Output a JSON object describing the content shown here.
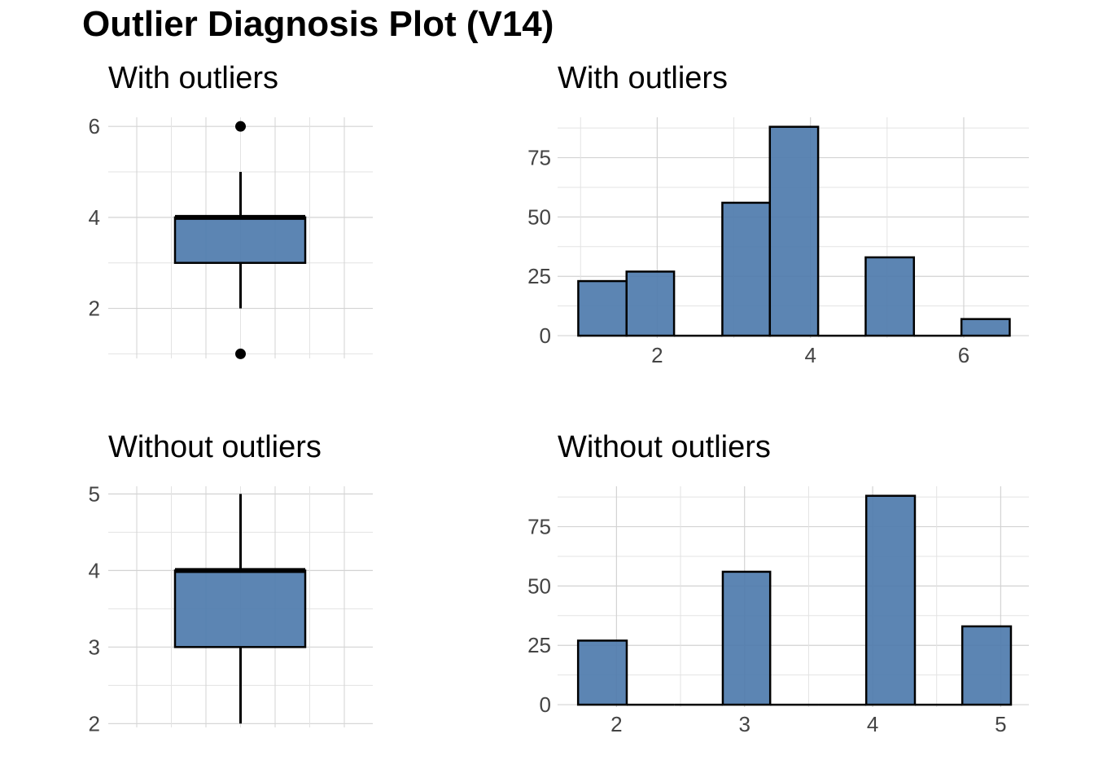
{
  "title": "Outlier Diagnosis Plot (V14)",
  "colors": {
    "fill": "#4E7BAC",
    "outline": "#000000",
    "grid": "#d3d3d3",
    "tick": "#444444"
  },
  "chart_data": [
    {
      "type": "box",
      "title": "With outliers",
      "ylim": [
        0.9,
        6.2
      ],
      "y_ticks": [
        "2",
        "4",
        "6"
      ],
      "stats": {
        "lower_whisker": 2,
        "q1": 3,
        "median": 4,
        "q3": 4,
        "upper_whisker": 5
      },
      "outliers": [
        1,
        6
      ],
      "grid": true
    },
    {
      "type": "bar",
      "title": "With outliers",
      "xlim": [
        0.7,
        6.85
      ],
      "ylim": [
        -1,
        92
      ],
      "x_ticks": [
        "2",
        "4",
        "6"
      ],
      "y_ticks": [
        "0",
        "25",
        "50",
        "75"
      ],
      "bins": [
        {
          "x0": 0.97,
          "x1": 1.6,
          "count": 23
        },
        {
          "x0": 1.6,
          "x1": 2.22,
          "count": 27
        },
        {
          "x0": 2.22,
          "x1": 2.85,
          "count": 0
        },
        {
          "x0": 2.85,
          "x1": 3.47,
          "count": 56
        },
        {
          "x0": 3.47,
          "x1": 4.1,
          "count": 88
        },
        {
          "x0": 4.1,
          "x1": 4.72,
          "count": 0
        },
        {
          "x0": 4.72,
          "x1": 5.35,
          "count": 33
        },
        {
          "x0": 5.35,
          "x1": 5.97,
          "count": 0
        },
        {
          "x0": 5.97,
          "x1": 6.6,
          "count": 7
        }
      ],
      "grid": true
    },
    {
      "type": "box",
      "title": "Without outliers",
      "ylim": [
        1.95,
        5.1
      ],
      "y_ticks": [
        "2",
        "3",
        "4",
        "5"
      ],
      "stats": {
        "lower_whisker": 2,
        "q1": 3,
        "median": 4,
        "q3": 4,
        "upper_whisker": 5
      },
      "outliers": [],
      "grid": true
    },
    {
      "type": "bar",
      "title": "Without outliers",
      "xlim": [
        1.54,
        5.22
      ],
      "ylim": [
        -1,
        92
      ],
      "x_ticks": [
        "2",
        "3",
        "4",
        "5"
      ],
      "y_ticks": [
        "0",
        "25",
        "50",
        "75"
      ],
      "bins": [
        {
          "x0": 1.7,
          "x1": 2.08,
          "count": 27
        },
        {
          "x0": 2.08,
          "x1": 2.45,
          "count": 0
        },
        {
          "x0": 2.45,
          "x1": 2.83,
          "count": 0
        },
        {
          "x0": 2.83,
          "x1": 3.2,
          "count": 56
        },
        {
          "x0": 3.2,
          "x1": 3.58,
          "count": 0
        },
        {
          "x0": 3.58,
          "x1": 3.95,
          "count": 0
        },
        {
          "x0": 3.95,
          "x1": 4.33,
          "count": 88
        },
        {
          "x0": 4.33,
          "x1": 4.7,
          "count": 0
        },
        {
          "x0": 4.7,
          "x1": 5.08,
          "count": 33
        }
      ],
      "grid": true
    }
  ]
}
